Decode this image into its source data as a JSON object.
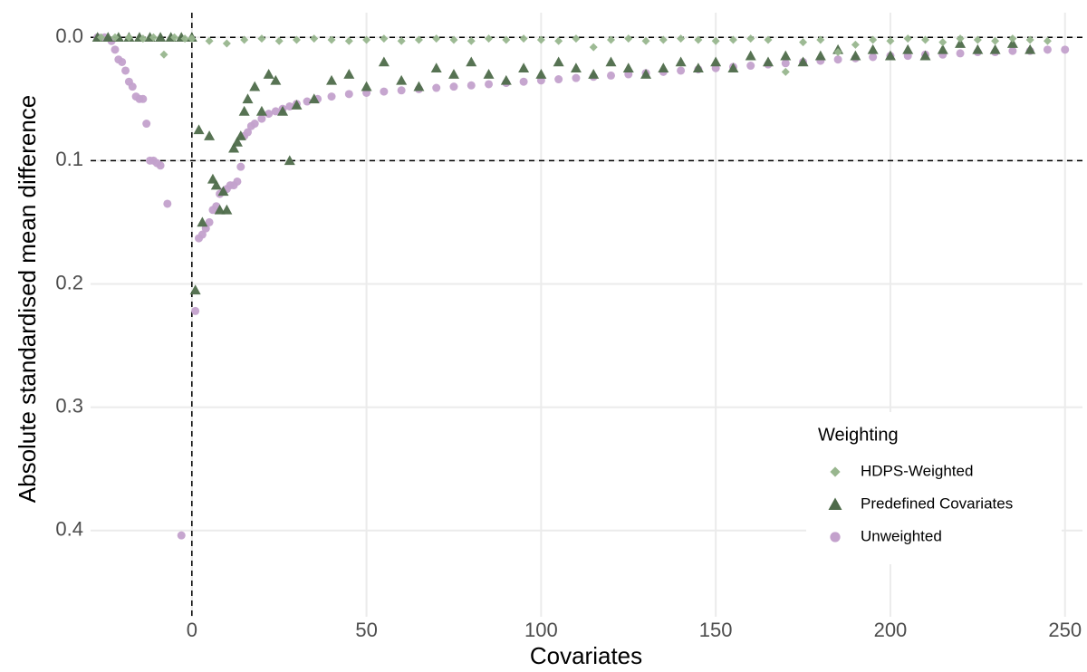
{
  "chart_data": {
    "type": "scatter",
    "x_label": "Covariates",
    "y_label": "Absolute standardised mean difference",
    "xlim": [
      -29,
      255
    ],
    "ylim": [
      -0.02,
      0.47
    ],
    "y_reversed": true,
    "xticks": [
      0,
      50,
      100,
      150,
      200,
      250
    ],
    "yticks": [
      {
        "value": 0,
        "label": "0.0"
      },
      0.1,
      0.2,
      0.3,
      0.4
    ],
    "grid": true,
    "hlines": [
      0,
      0.1
    ],
    "vlines": [
      0
    ],
    "legend_title": "Weighting",
    "legend_position": "bottom-right",
    "series": [
      {
        "name": "HDPS-Weighted",
        "color": "#98b68e",
        "marker": "diamond",
        "x": [
          -26,
          -22,
          -18,
          -14,
          -11,
          -8,
          -5,
          -2,
          0,
          5,
          10,
          15,
          20,
          25,
          30,
          35,
          40,
          45,
          50,
          55,
          60,
          65,
          70,
          75,
          80,
          85,
          90,
          95,
          100,
          105,
          110,
          115,
          120,
          125,
          130,
          135,
          140,
          145,
          150,
          155,
          160,
          165,
          170,
          175,
          180,
          185,
          190,
          195,
          200,
          205,
          210,
          215,
          220,
          225,
          230,
          235,
          240,
          245
        ],
        "values": [
          0,
          0,
          0,
          0.001,
          0,
          0.014,
          0,
          0.001,
          0.001,
          0.003,
          0.005,
          0.002,
          0.001,
          0.003,
          0.002,
          0.001,
          0.002,
          0.003,
          0.002,
          0.001,
          0.003,
          0.002,
          0.001,
          0.002,
          0.003,
          0.001,
          0.002,
          0.001,
          0.002,
          0.003,
          0.001,
          0.008,
          0.002,
          0.001,
          0.003,
          0.002,
          0.001,
          0.002,
          0.003,
          0.002,
          0.001,
          0.002,
          0.028,
          0.004,
          0.002,
          0.012,
          0.006,
          0.002,
          0.003,
          0.001,
          0.002,
          0.004,
          0.001,
          0.002,
          0.003,
          0.001,
          0.002,
          0.003
        ]
      },
      {
        "name": "Predefined Covariates",
        "color": "#4e6b4a",
        "marker": "triangle",
        "x": [
          -27,
          -24,
          -21,
          -18,
          -15,
          -12,
          -9,
          -6,
          -3,
          0,
          1,
          2,
          3,
          5,
          6,
          7,
          8,
          9,
          10,
          12,
          13,
          14,
          15,
          16,
          18,
          20,
          22,
          24,
          26,
          28,
          30,
          35,
          40,
          45,
          50,
          55,
          60,
          65,
          70,
          75,
          80,
          85,
          90,
          95,
          100,
          105,
          110,
          115,
          120,
          125,
          130,
          135,
          140,
          145,
          150,
          155,
          160,
          165,
          170,
          175,
          180,
          185,
          190,
          195,
          200,
          205,
          210,
          215,
          220,
          225,
          230,
          235,
          240
        ],
        "values": [
          0,
          0,
          0,
          0,
          0,
          0,
          0,
          0,
          0,
          0,
          0.205,
          0.075,
          0.15,
          0.08,
          0.115,
          0.12,
          0.14,
          0.125,
          0.14,
          0.09,
          0.085,
          0.08,
          0.06,
          0.05,
          0.04,
          0.06,
          0.03,
          0.035,
          0.06,
          0.1,
          0.055,
          0.05,
          0.035,
          0.03,
          0.04,
          0.02,
          0.035,
          0.04,
          0.025,
          0.03,
          0.02,
          0.03,
          0.035,
          0.025,
          0.03,
          0.02,
          0.025,
          0.03,
          0.02,
          0.025,
          0.03,
          0.025,
          0.02,
          0.025,
          0.02,
          0.025,
          0.015,
          0.02,
          0.015,
          0.02,
          0.015,
          0.01,
          0.015,
          0.01,
          0.015,
          0.01,
          0.015,
          0.01,
          0.005,
          0.01,
          0.01,
          0.005,
          0.01
        ]
      },
      {
        "name": "Unweighted",
        "color": "#c3a1cc",
        "marker": "circle",
        "x": [
          -27,
          -25,
          -23,
          -22,
          -21,
          -20,
          -19,
          -18,
          -17,
          -16,
          -15,
          -14,
          -13,
          -12,
          -11,
          -10,
          -9,
          -7,
          -3,
          1,
          2,
          3,
          4,
          5,
          6,
          7,
          8,
          9,
          10,
          11,
          12,
          13,
          14,
          15,
          16,
          17,
          18,
          20,
          22,
          24,
          26,
          28,
          30,
          33,
          36,
          40,
          45,
          50,
          55,
          60,
          65,
          70,
          75,
          80,
          85,
          90,
          95,
          100,
          105,
          110,
          115,
          120,
          125,
          130,
          135,
          140,
          145,
          150,
          155,
          160,
          165,
          170,
          175,
          180,
          185,
          190,
          195,
          200,
          205,
          210,
          215,
          220,
          225,
          230,
          235,
          240,
          245,
          250
        ],
        "values": [
          0,
          0,
          0.003,
          0.01,
          0.018,
          0.02,
          0.027,
          0.036,
          0.04,
          0.048,
          0.05,
          0.05,
          0.07,
          0.1,
          0.1,
          0.102,
          0.104,
          0.135,
          0.404,
          0.222,
          0.163,
          0.16,
          0.155,
          0.15,
          0.14,
          0.137,
          0.127,
          0.125,
          0.123,
          0.12,
          0.12,
          0.117,
          0.105,
          0.08,
          0.077,
          0.072,
          0.07,
          0.066,
          0.062,
          0.06,
          0.058,
          0.056,
          0.054,
          0.052,
          0.05,
          0.048,
          0.046,
          0.045,
          0.044,
          0.043,
          0.042,
          0.041,
          0.04,
          0.039,
          0.038,
          0.037,
          0.036,
          0.035,
          0.034,
          0.033,
          0.032,
          0.031,
          0.03,
          0.029,
          0.028,
          0.027,
          0.026,
          0.025,
          0.024,
          0.023,
          0.022,
          0.021,
          0.02,
          0.019,
          0.018,
          0.017,
          0.016,
          0.015,
          0.015,
          0.014,
          0.014,
          0.013,
          0.012,
          0.012,
          0.011,
          0.011,
          0.01,
          0.01
        ]
      }
    ]
  }
}
